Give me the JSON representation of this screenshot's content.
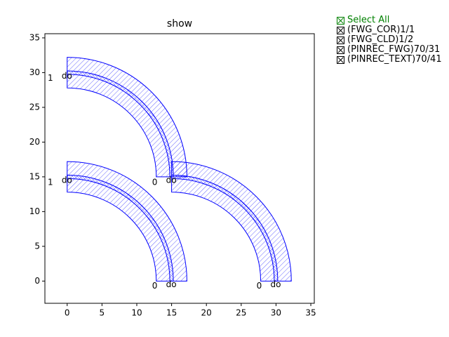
{
  "chart_data": {
    "type": "layout",
    "title": "show",
    "xlim": [
      -3.2,
      35.5
    ],
    "ylim": [
      -3.2,
      35.6
    ],
    "xticks": [
      0,
      5,
      10,
      15,
      20,
      25,
      30,
      35
    ],
    "yticks": [
      0,
      5,
      10,
      15,
      20,
      25,
      30,
      35
    ],
    "color": "#0000ff",
    "cladding_radii": [
      12.8,
      17.2
    ],
    "core_radii": [
      14.75,
      15.25
    ],
    "bends": [
      {
        "cx": 0,
        "cy": 15
      },
      {
        "cx": 0,
        "cy": 0
      },
      {
        "cx": 15,
        "cy": 0
      }
    ],
    "ports": [
      {
        "text": "1",
        "x": -2.8,
        "y": 29.2
      },
      {
        "text": "do",
        "x": -0.8,
        "y": 29.5
      },
      {
        "text": "0",
        "x": 12.2,
        "y": 14.2
      },
      {
        "text": "do",
        "x": 14.2,
        "y": 14.5
      },
      {
        "text": "1",
        "x": -2.8,
        "y": 14.2
      },
      {
        "text": "do",
        "x": -0.8,
        "y": 14.5
      },
      {
        "text": "0",
        "x": 12.2,
        "y": -0.7
      },
      {
        "text": "do",
        "x": 14.2,
        "y": -0.5
      },
      {
        "text": "0",
        "x": 27.2,
        "y": -0.7
      },
      {
        "text": "do",
        "x": 29.2,
        "y": -0.5
      }
    ]
  },
  "legend": {
    "select_all": "Select All",
    "layers": [
      "(FWG_COR)1/1",
      "(FWG_CLD)1/2",
      "(PINREC_FWG)70/31",
      "(PINREC_TEXT)70/41"
    ]
  }
}
